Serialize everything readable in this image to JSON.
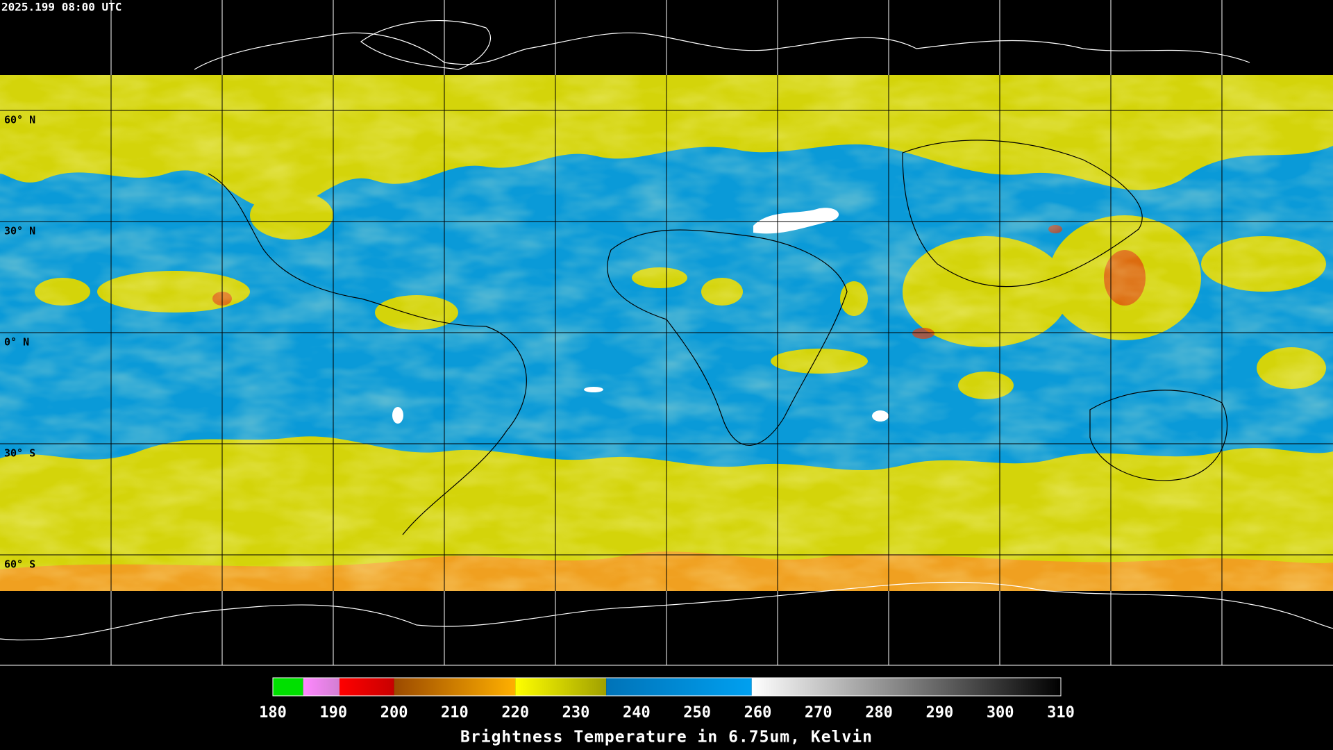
{
  "timestamp": "2025.199 08:00 UTC",
  "map": {
    "lat_labels": [
      "60° N",
      "30° N",
      "0° N",
      "30° S",
      "60° S"
    ]
  },
  "colorbar": {
    "ticks": [
      180,
      190,
      200,
      210,
      220,
      230,
      240,
      250,
      260,
      270,
      280,
      290,
      300,
      310
    ],
    "segments": [
      {
        "from": 180,
        "to": 185,
        "colors": [
          "#00e000",
          "#00e000"
        ]
      },
      {
        "from": 185,
        "to": 191,
        "colors": [
          "#ff88ff",
          "#d27ed2"
        ]
      },
      {
        "from": 191,
        "to": 200,
        "colors": [
          "#ff0000",
          "#c80000"
        ]
      },
      {
        "from": 200,
        "to": 220,
        "colors": [
          "#9b4a00",
          "#ffb000"
        ]
      },
      {
        "from": 220,
        "to": 235,
        "colors": [
          "#ffff00",
          "#a0a000"
        ]
      },
      {
        "from": 235,
        "to": 259,
        "colors": [
          "#0073b8",
          "#00a0f0"
        ]
      },
      {
        "from": 259,
        "to": 310,
        "colors": [
          "#ffffff",
          "#000000"
        ]
      }
    ],
    "title": "Brightness Temperature in 6.75um, Kelvin"
  }
}
